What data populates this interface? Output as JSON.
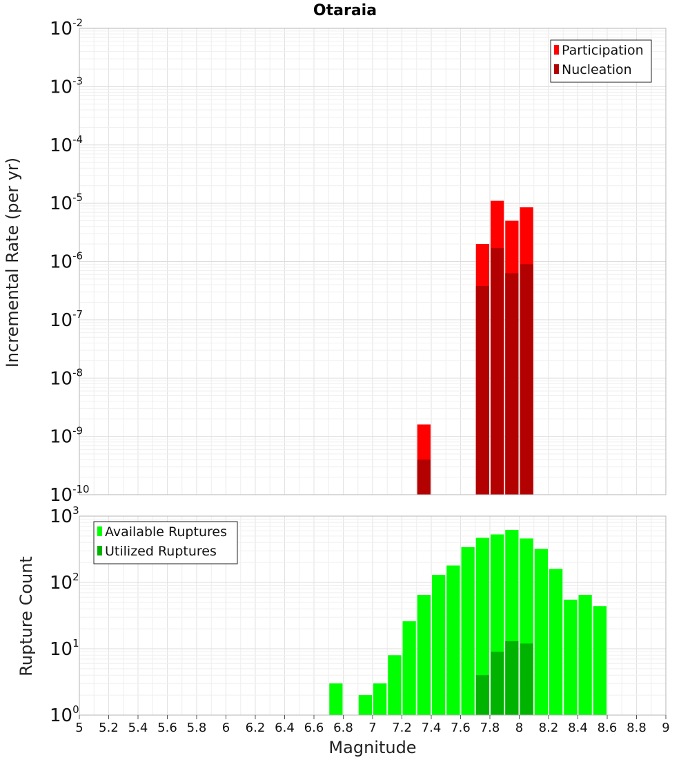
{
  "chart_data": [
    {
      "panel": "top",
      "type": "bar",
      "title": "Otaraia",
      "xlabel": "Magnitude",
      "ylabel": "Incremental Rate (per yr)",
      "yscale": "log",
      "ylim_exponents": [
        -10,
        -2
      ],
      "xlim": [
        5,
        9
      ],
      "legend_position": "top-right",
      "series": [
        {
          "name": "Participation",
          "color": "#ff0000",
          "points": [
            [
              7.35,
              1.6e-09
            ],
            [
              7.75,
              2e-06
            ],
            [
              7.85,
              1.1e-05
            ],
            [
              7.95,
              5e-06
            ],
            [
              8.05,
              8.5e-06
            ]
          ]
        },
        {
          "name": "Nucleation",
          "color": "#b30000",
          "points": [
            [
              7.35,
              4e-10
            ],
            [
              7.75,
              3.8e-07
            ],
            [
              7.85,
              1.7e-06
            ],
            [
              7.95,
              6.3e-07
            ],
            [
              8.05,
              9e-07
            ]
          ]
        }
      ]
    },
    {
      "panel": "bottom",
      "type": "bar",
      "xlabel": "Magnitude",
      "ylabel": "Rupture Count",
      "yscale": "log",
      "ylim_exponents": [
        0,
        3
      ],
      "xlim": [
        5,
        9
      ],
      "x_ticks": [
        "5",
        "5.2",
        "5.4",
        "5.6",
        "5.8",
        "6",
        "6.2",
        "6.4",
        "6.6",
        "6.8",
        "7",
        "7.2",
        "7.4",
        "7.6",
        "7.8",
        "8",
        "8.2",
        "8.4",
        "8.6",
        "8.8",
        "9"
      ],
      "legend_position": "top-left",
      "series": [
        {
          "name": "Available Ruptures",
          "color": "#00ff00",
          "points": [
            [
              6.75,
              3
            ],
            [
              6.95,
              2
            ],
            [
              7.05,
              3
            ],
            [
              7.15,
              8
            ],
            [
              7.25,
              26
            ],
            [
              7.35,
              65
            ],
            [
              7.45,
              130
            ],
            [
              7.55,
              180
            ],
            [
              7.65,
              340
            ],
            [
              7.75,
              470
            ],
            [
              7.85,
              530
            ],
            [
              7.95,
              620
            ],
            [
              8.05,
              460
            ],
            [
              8.15,
              320
            ],
            [
              8.25,
              160
            ],
            [
              8.35,
              55
            ],
            [
              8.45,
              65
            ],
            [
              8.55,
              44
            ]
          ]
        },
        {
          "name": "Utilized Ruptures",
          "color": "#00b300",
          "points": [
            [
              7.35,
              1
            ],
            [
              7.75,
              4
            ],
            [
              7.85,
              9
            ],
            [
              7.95,
              13
            ],
            [
              8.05,
              12
            ]
          ]
        }
      ]
    }
  ]
}
